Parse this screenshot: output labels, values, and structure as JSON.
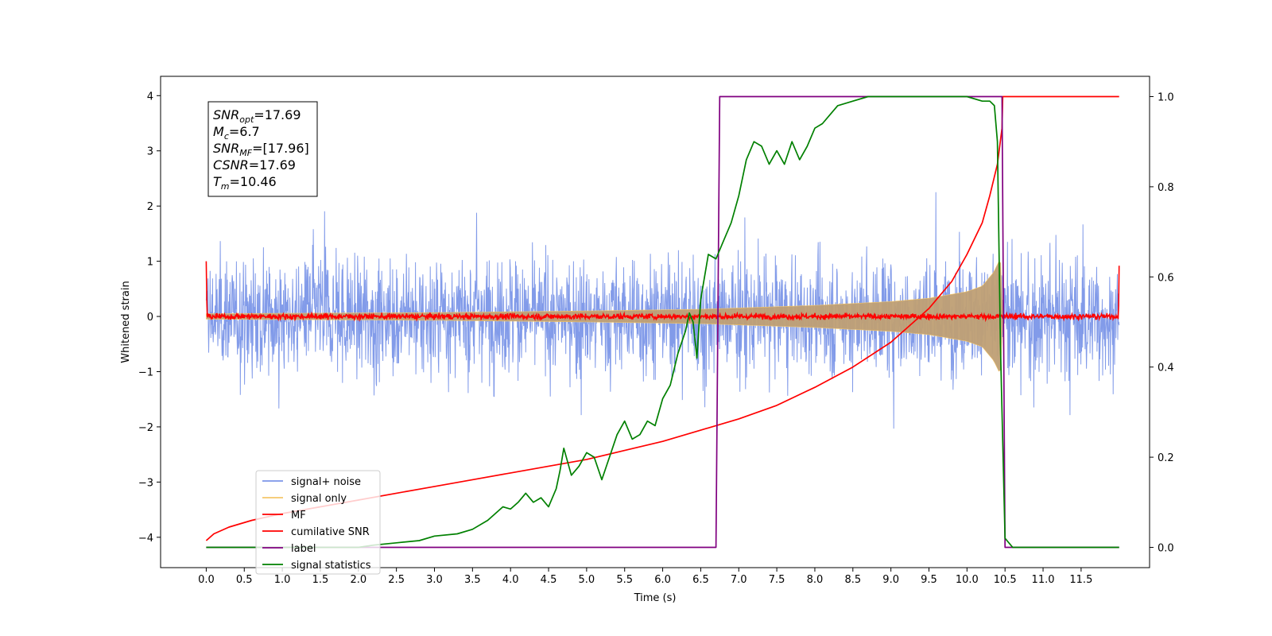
{
  "chart_data": {
    "type": "line",
    "xlabel": "Time (s)",
    "ylabel": "Whitened strain",
    "xlim": [
      -0.6,
      12.4
    ],
    "ylim": [
      -4.55,
      4.35
    ],
    "y2lim": [
      -0.045,
      1.045
    ],
    "xticks": [
      0.0,
      0.5,
      1.0,
      1.5,
      2.0,
      2.5,
      3.0,
      3.5,
      4.0,
      4.5,
      5.0,
      5.5,
      6.0,
      6.5,
      7.0,
      7.5,
      8.0,
      8.5,
      9.0,
      9.5,
      10.0,
      10.5,
      11.0,
      11.5
    ],
    "xtick_labels": [
      "0.0",
      "0.5",
      "1.0",
      "1.5",
      "2.0",
      "2.5",
      "3.0",
      "3.5",
      "4.0",
      "4.5",
      "5.0",
      "5.5",
      "6.0",
      "6.5",
      "7.0",
      "7.5",
      "8.0",
      "8.5",
      "9.0",
      "9.5",
      "10.0",
      "10.5",
      "11.0",
      "11.5"
    ],
    "yticks": [
      -4,
      -3,
      -2,
      -1,
      0,
      1,
      2,
      3,
      4
    ],
    "ytick_labels": [
      "−4",
      "−3",
      "−2",
      "−1",
      "0",
      "1",
      "2",
      "3",
      "4"
    ],
    "y2ticks": [
      0.0,
      0.2,
      0.4,
      0.6,
      0.8,
      1.0
    ],
    "y2tick_labels": [
      "0.0",
      "0.2",
      "0.4",
      "0.6",
      "0.8",
      "1.0"
    ],
    "grid": false,
    "legend_position": "lower-left",
    "annotation": {
      "lines": [
        {
          "base": "SNR",
          "sub": "opt",
          "rest": "=17.69"
        },
        {
          "base": "M",
          "sub": "c",
          "rest": "=6.7"
        },
        {
          "base": "SNR",
          "sub": "MF",
          "rest": "=[17.96]"
        },
        {
          "base": "CSNR",
          "sub": "",
          "rest": "=17.69"
        },
        {
          "base": "T",
          "sub": "m",
          "rest": "=10.46"
        }
      ]
    },
    "series": [
      {
        "name": "signal+ noise",
        "axis": "left",
        "color": "#7b96e8",
        "kind": "noise",
        "amplitude_range": [
          -4.1,
          3.2
        ],
        "t_start": 0.0,
        "t_end": 12.0
      },
      {
        "name": "signal only",
        "axis": "left",
        "color": "#f5c76a",
        "fill_color": "#bf9f74",
        "kind": "chirp",
        "envelope": {
          "x": [
            0.0,
            3.0,
            5.0,
            6.5,
            8.0,
            9.0,
            9.5,
            10.0,
            10.2,
            10.35,
            10.42,
            10.46,
            10.47
          ],
          "y": [
            0.05,
            0.07,
            0.1,
            0.13,
            0.2,
            0.27,
            0.33,
            0.45,
            0.55,
            0.8,
            1.0,
            0.95,
            0.0
          ]
        }
      },
      {
        "name": "MF",
        "axis": "left",
        "color": "#ff0000",
        "kind": "mf_noise",
        "t_start": 0.0,
        "t_end": 12.0,
        "edge_values": [
          1.0,
          0.92
        ]
      },
      {
        "name": "cumilative SNR",
        "axis": "right",
        "color": "#ff0000",
        "x": [
          0.0,
          0.1,
          0.3,
          0.6,
          1.0,
          1.5,
          2.0,
          2.5,
          3.0,
          3.5,
          4.0,
          4.5,
          5.0,
          5.5,
          6.0,
          6.5,
          7.0,
          7.5,
          8.0,
          8.5,
          9.0,
          9.5,
          9.8,
          10.0,
          10.2,
          10.3,
          10.4,
          10.46,
          10.47,
          11.0,
          12.0
        ],
        "y": [
          0.015,
          0.03,
          0.045,
          0.06,
          0.075,
          0.09,
          0.105,
          0.12,
          0.135,
          0.15,
          0.165,
          0.18,
          0.195,
          0.215,
          0.235,
          0.26,
          0.285,
          0.315,
          0.355,
          0.4,
          0.455,
          0.53,
          0.59,
          0.65,
          0.72,
          0.78,
          0.85,
          0.93,
          1.0,
          1.0,
          1.0
        ]
      },
      {
        "name": "label",
        "axis": "right",
        "color": "#800080",
        "x": [
          0.0,
          6.7,
          6.75,
          10.46,
          10.5,
          12.0
        ],
        "y": [
          0.0,
          0.0,
          1.0,
          1.0,
          0.0,
          0.0
        ]
      },
      {
        "name": "signal statistics",
        "axis": "right",
        "color": "#008000",
        "x": [
          0.0,
          0.5,
          1.0,
          1.5,
          2.0,
          2.2,
          2.5,
          2.8,
          3.0,
          3.3,
          3.5,
          3.7,
          3.9,
          4.0,
          4.1,
          4.2,
          4.3,
          4.4,
          4.5,
          4.6,
          4.65,
          4.7,
          4.8,
          4.9,
          5.0,
          5.1,
          5.2,
          5.3,
          5.4,
          5.5,
          5.6,
          5.7,
          5.8,
          5.9,
          6.0,
          6.1,
          6.2,
          6.3,
          6.35,
          6.4,
          6.45,
          6.5,
          6.6,
          6.7,
          6.8,
          6.9,
          7.0,
          7.1,
          7.2,
          7.3,
          7.4,
          7.5,
          7.6,
          7.7,
          7.8,
          7.9,
          8.0,
          8.1,
          8.2,
          8.3,
          8.5,
          8.7,
          9.0,
          9.5,
          10.0,
          10.2,
          10.3,
          10.36,
          10.4,
          10.44,
          10.46,
          10.5,
          10.6,
          11.0,
          12.0
        ],
        "y": [
          0.0,
          0.0,
          0.0,
          0.0,
          0.0,
          0.005,
          0.01,
          0.015,
          0.025,
          0.03,
          0.04,
          0.06,
          0.09,
          0.085,
          0.1,
          0.12,
          0.1,
          0.11,
          0.09,
          0.13,
          0.17,
          0.22,
          0.16,
          0.18,
          0.21,
          0.2,
          0.15,
          0.2,
          0.25,
          0.28,
          0.24,
          0.25,
          0.28,
          0.27,
          0.33,
          0.36,
          0.43,
          0.48,
          0.52,
          0.5,
          0.42,
          0.55,
          0.65,
          0.64,
          0.68,
          0.72,
          0.78,
          0.86,
          0.9,
          0.89,
          0.85,
          0.88,
          0.85,
          0.9,
          0.86,
          0.89,
          0.93,
          0.94,
          0.96,
          0.98,
          0.99,
          1.0,
          1.0,
          1.0,
          1.0,
          0.99,
          0.99,
          0.98,
          0.9,
          0.45,
          0.3,
          0.02,
          0.0,
          0.0,
          0.0
        ]
      }
    ]
  }
}
